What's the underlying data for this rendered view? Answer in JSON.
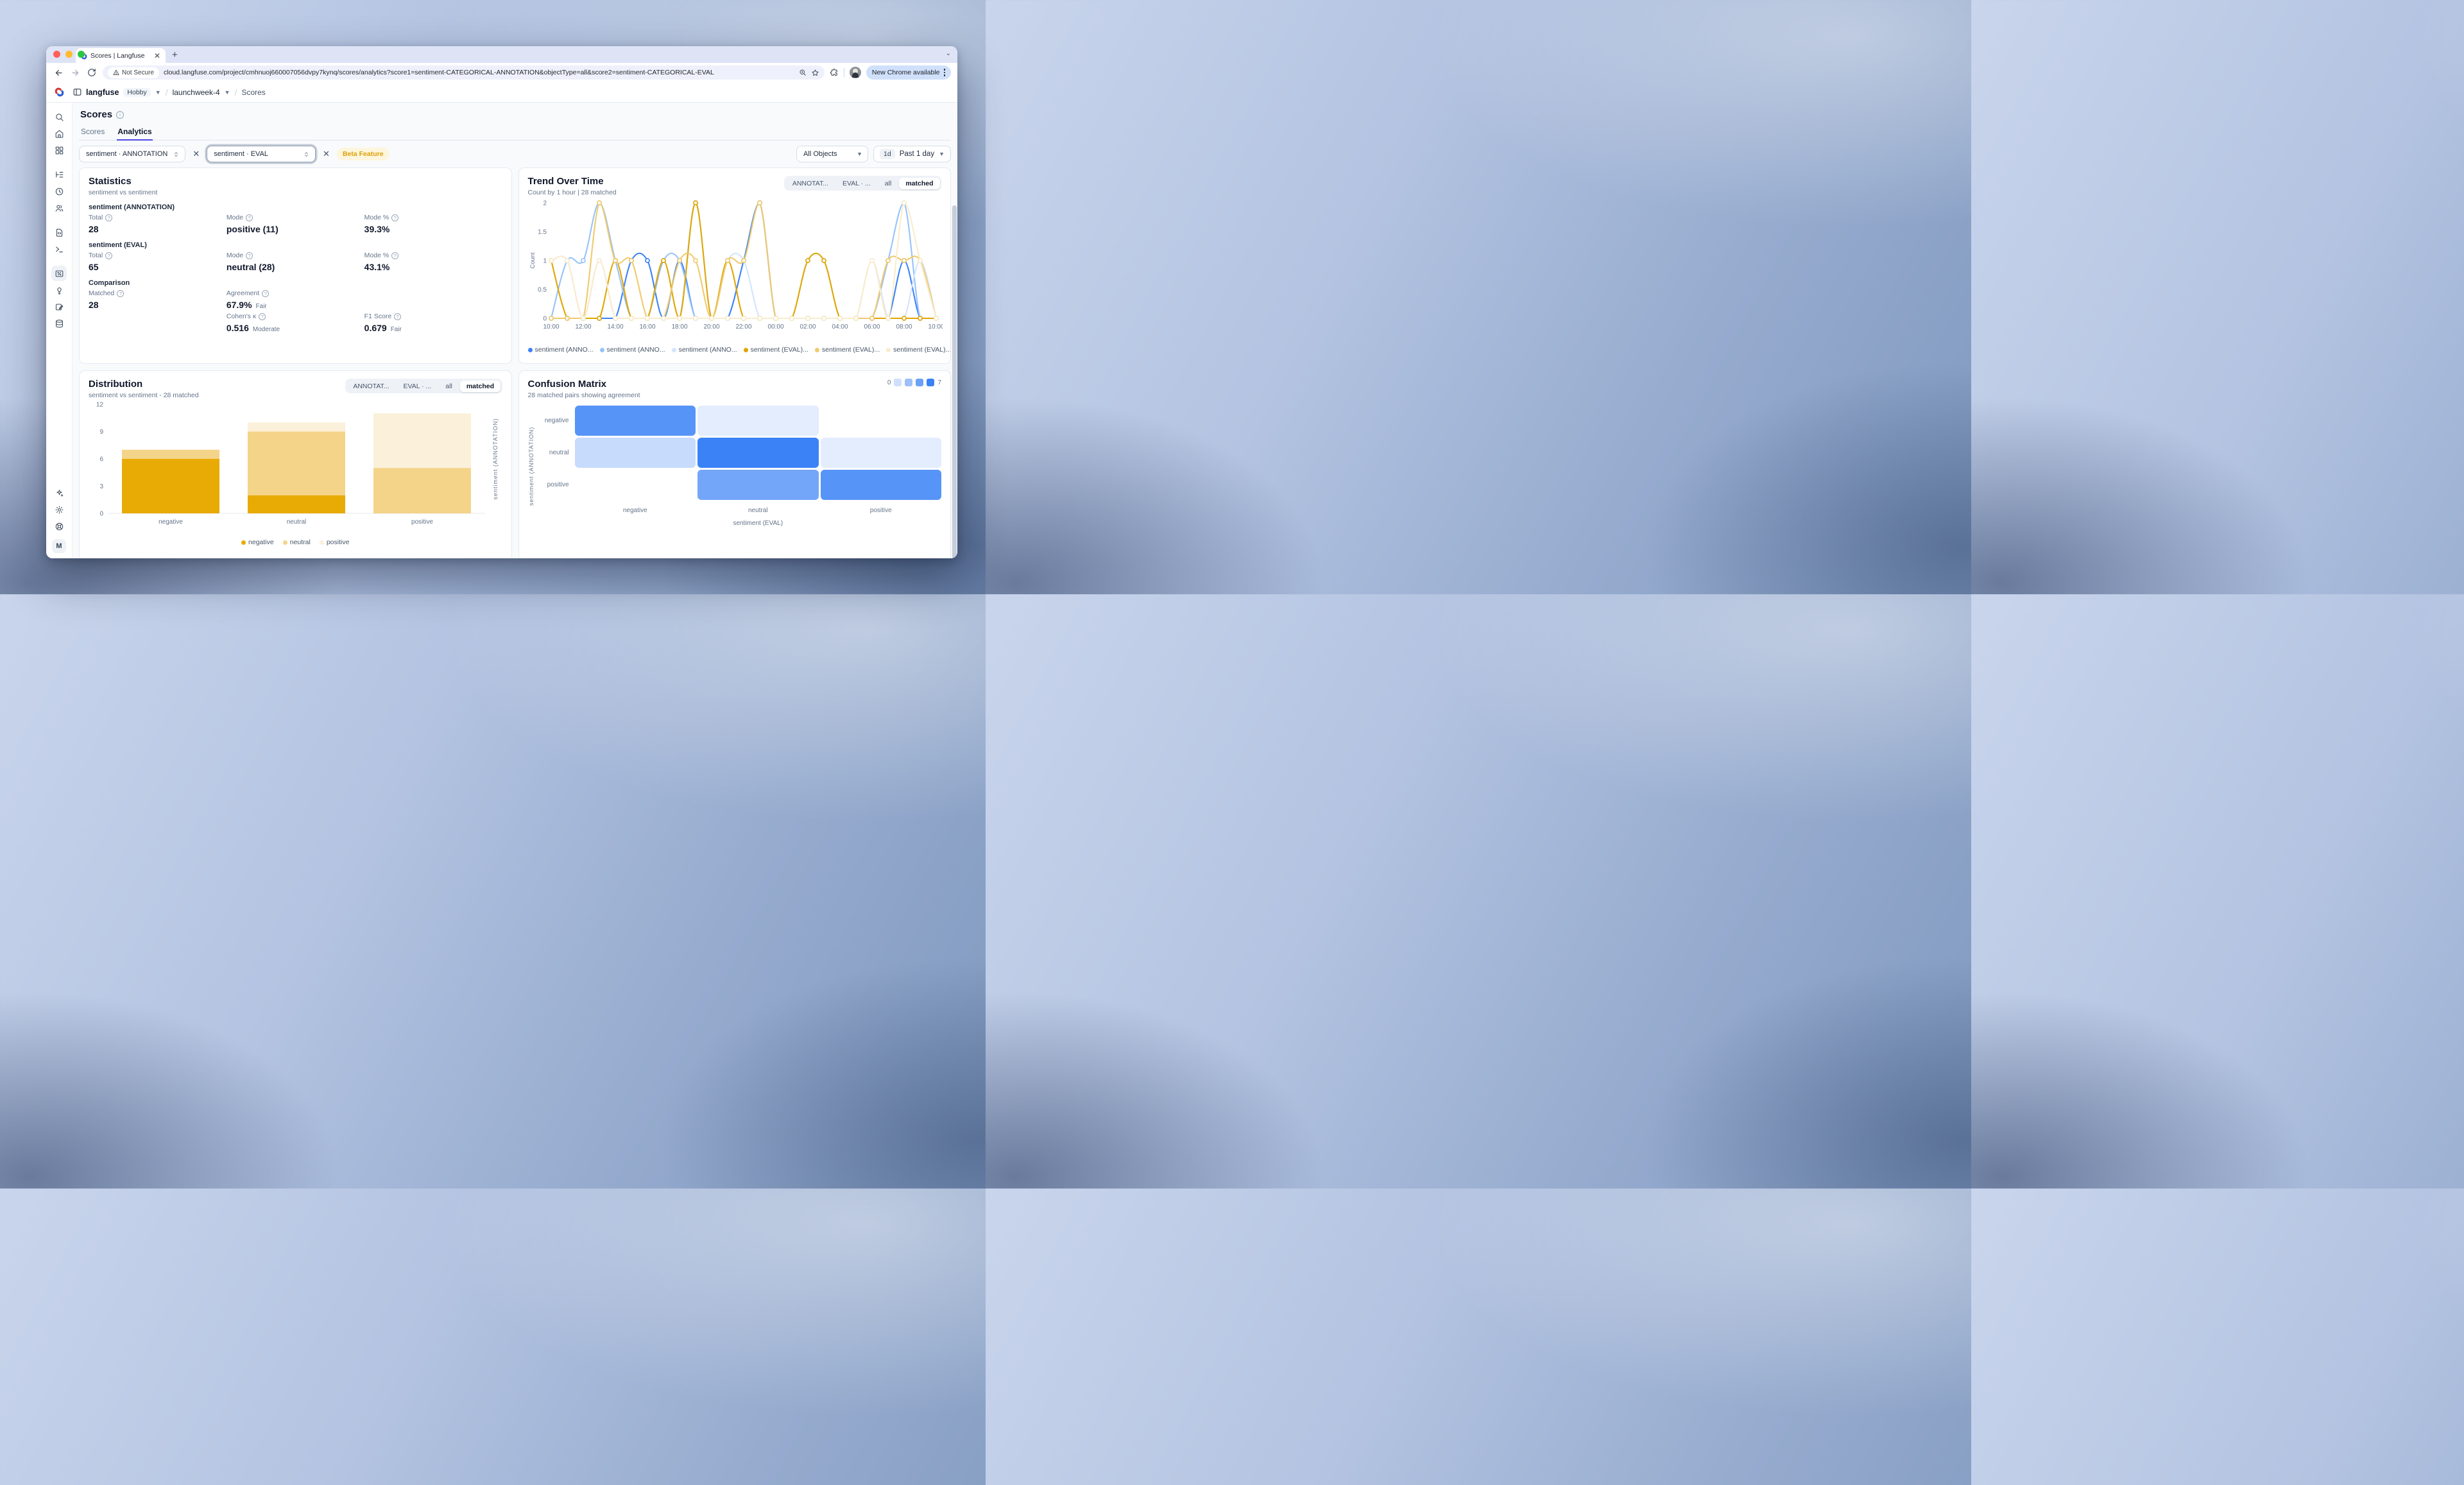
{
  "window": {
    "tab_title": "Scores | Langfuse",
    "security_label": "Not Secure",
    "url": "cloud.langfuse.com/project/cmhnuoj660007056dvpy7kynq/scores/analytics?score1=sentiment-CATEGORICAL-ANNOTATION&objectType=all&score2=sentiment-CATEGORICAL-EVAL",
    "update_pill": "New Chrome available"
  },
  "app": {
    "breadcrumb": {
      "org": "langfuse",
      "plan": "Hobby",
      "project": "launchweek-4",
      "page": "Scores"
    },
    "page_title": "Scores",
    "tabs": [
      {
        "label": "Scores",
        "active": false
      },
      {
        "label": "Analytics",
        "active": true
      }
    ],
    "filters": {
      "score1": "sentiment · ANNOTATION",
      "score2": "sentiment · EVAL",
      "beta_badge": "Beta Feature",
      "object_filter": "All Objects",
      "range_short": "1d",
      "range_label": "Past 1 day"
    },
    "sidebar": {
      "items": [
        {
          "name": "search",
          "group": 0
        },
        {
          "name": "home",
          "group": 0
        },
        {
          "name": "dashboards",
          "group": 0
        },
        {
          "name": "traces",
          "group": 1
        },
        {
          "name": "sessions",
          "group": 1
        },
        {
          "name": "users",
          "group": 1
        },
        {
          "name": "prompts",
          "group": 2
        },
        {
          "name": "playground",
          "group": 2
        },
        {
          "name": "scores",
          "group": 3,
          "active": true
        },
        {
          "name": "evaluators",
          "group": 3
        },
        {
          "name": "annotation-queues",
          "group": 3
        },
        {
          "name": "datasets",
          "group": 3
        }
      ],
      "bottom": [
        "sparkles",
        "settings",
        "support"
      ],
      "avatar": "M"
    },
    "statistics": {
      "title": "Statistics",
      "subtitle": "sentiment vs sentiment",
      "sections": [
        {
          "heading": "sentiment (ANNOTATION)",
          "rows": [
            [
              {
                "label": "Total",
                "value": "28"
              },
              {
                "label": "Mode",
                "value": "positive (11)"
              },
              {
                "label": "Mode %",
                "value": "39.3%"
              }
            ]
          ]
        },
        {
          "heading": "sentiment (EVAL)",
          "rows": [
            [
              {
                "label": "Total",
                "value": "65"
              },
              {
                "label": "Mode",
                "value": "neutral (28)"
              },
              {
                "label": "Mode %",
                "value": "43.1%"
              }
            ]
          ]
        },
        {
          "heading": "Comparison",
          "rows": [
            [
              {
                "label": "Matched",
                "value": "28"
              },
              {
                "label": "Agreement",
                "value": "67.9%",
                "qualifier": "Fair"
              },
              null
            ],
            [
              null,
              {
                "label": "Cohen's κ",
                "value": "0.516",
                "qualifier": "Moderate"
              },
              {
                "label": "F1 Score",
                "value": "0.679",
                "qualifier": "Fair"
              }
            ]
          ]
        }
      ]
    }
  },
  "chart_data": [
    {
      "id": "trend",
      "type": "line",
      "title": "Trend Over Time",
      "subtitle": "Count by 1 hour | 28 matched",
      "view_tabs": [
        "ANNOTAT...",
        "EVAL · ...",
        "all",
        "matched"
      ],
      "active_view": "matched",
      "ylabel": "Count",
      "ylim": [
        0,
        2
      ],
      "yticks": [
        0,
        0.5,
        1,
        1.5,
        2
      ],
      "x": [
        "10:00",
        "11:00",
        "12:00",
        "13:00",
        "14:00",
        "15:00",
        "16:00",
        "17:00",
        "18:00",
        "19:00",
        "20:00",
        "21:00",
        "22:00",
        "23:00",
        "00:00",
        "01:00",
        "02:00",
        "03:00",
        "04:00",
        "05:00",
        "06:00",
        "07:00",
        "08:00",
        "09:00",
        "10:00"
      ],
      "series": [
        {
          "name": "sentiment (ANNOTATION) negative",
          "legend": "sentiment (ANNO...",
          "color": "#3b82f6",
          "values": [
            0,
            0,
            0,
            0,
            0,
            1,
            1,
            0,
            1,
            0,
            0,
            0,
            1,
            2,
            0,
            0,
            0,
            0,
            0,
            0,
            0,
            0,
            1,
            0,
            0
          ]
        },
        {
          "name": "sentiment (ANNOTATION) neutral",
          "legend": "sentiment (ANNO...",
          "color": "#96c3fb",
          "values": [
            0,
            1,
            1,
            2,
            1,
            0,
            0,
            1,
            1,
            0,
            0,
            0,
            0,
            0,
            0,
            0,
            0,
            0,
            0,
            0,
            0,
            1,
            2,
            0,
            0
          ]
        },
        {
          "name": "sentiment (ANNOTATION) positive",
          "legend": "sentiment (ANNO...",
          "color": "#d4e4fc",
          "values": [
            1,
            1,
            0,
            1,
            0,
            0,
            0,
            0,
            0,
            2,
            0,
            1,
            1,
            0,
            0,
            0,
            1,
            1,
            0,
            0,
            1,
            0,
            0,
            1,
            0
          ]
        },
        {
          "name": "sentiment (EVAL) negative",
          "legend": "sentiment (EVAL)...",
          "color": "#dfa605",
          "values": [
            1,
            0,
            0,
            0,
            1,
            0,
            0,
            1,
            0,
            2,
            0,
            1,
            0,
            0,
            0,
            0,
            1,
            1,
            0,
            0,
            0,
            0,
            0,
            0,
            0
          ]
        },
        {
          "name": "sentiment (EVAL) neutral",
          "legend": "sentiment (EVAL)...",
          "color": "#f0ca6d",
          "values": [
            0,
            0,
            0,
            2,
            1,
            1,
            0,
            0,
            1,
            1,
            0,
            1,
            1,
            2,
            0,
            0,
            0,
            0,
            0,
            0,
            0,
            1,
            1,
            1,
            0
          ]
        },
        {
          "name": "sentiment (EVAL) positive",
          "legend": "sentiment (EVAL)...",
          "color": "#faeccc",
          "values": [
            1,
            1,
            0,
            1,
            0,
            0,
            0,
            0,
            0,
            0,
            0,
            0,
            0,
            0,
            0,
            0,
            0,
            0,
            0,
            0,
            1,
            0,
            2,
            1,
            0
          ]
        }
      ]
    },
    {
      "id": "distribution",
      "type": "stacked-bar",
      "title": "Distribution",
      "subtitle": "sentiment vs sentiment - 28 matched",
      "view_tabs": [
        "ANNOTAT...",
        "EVAL · ...",
        "all",
        "matched"
      ],
      "active_view": "matched",
      "categories": [
        "negative",
        "neutral",
        "positive"
      ],
      "series": [
        {
          "name": "negative",
          "color": "#e8ab06",
          "values": [
            6,
            2,
            0
          ]
        },
        {
          "name": "neutral",
          "color": "#f4d489",
          "values": [
            1,
            7,
            5
          ]
        },
        {
          "name": "positive",
          "color": "#fbf0d9",
          "values": [
            0,
            1,
            6
          ]
        }
      ],
      "totals": [
        7,
        10,
        11
      ],
      "ylim": [
        0,
        12
      ],
      "yticks": [
        0,
        3,
        6,
        9,
        12
      ],
      "right_axis_label": "sentiment (ANNOTATION)"
    },
    {
      "id": "confusion",
      "type": "heatmap",
      "title": "Confusion Matrix",
      "subtitle": "28 matched pairs showing agreement",
      "rows": [
        "negative",
        "neutral",
        "positive"
      ],
      "cols": [
        "negative",
        "neutral",
        "positive"
      ],
      "values": [
        [
          6,
          1,
          0
        ],
        [
          2,
          7,
          1
        ],
        [
          0,
          5,
          6
        ]
      ],
      "scale": {
        "min": 0,
        "max": 7
      },
      "base_color": "#3b82f6",
      "xlabel": "sentiment (EVAL)",
      "ylabel": "sentiment (ANNOTATION)"
    }
  ],
  "colors": {
    "accent": "#4f46e5",
    "heatmap_base": "#3b82f6"
  }
}
